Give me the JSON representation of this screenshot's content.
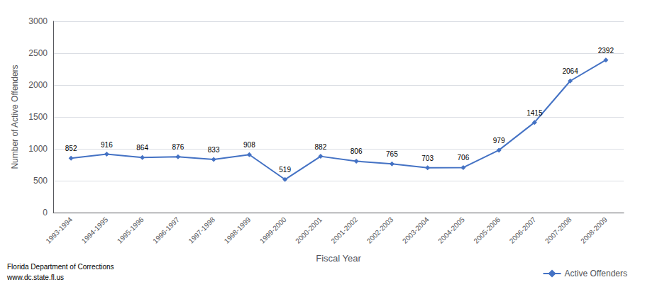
{
  "chart_data": {
    "type": "line",
    "categories": [
      "1993-1994",
      "1994-1995",
      "1995-1996",
      "1996-1997",
      "1997-1998",
      "1998-1999",
      "1999-2000",
      "2000-2001",
      "2001-2002",
      "2002-2003",
      "2003-2004",
      "2004-2005",
      "2005-2006",
      "2006-2007",
      "2007-2008",
      "2008-2009"
    ],
    "series": [
      {
        "name": "Active Offenders",
        "color": "#4472C4",
        "marker": "diamond",
        "values": [
          852,
          916,
          864,
          876,
          833,
          908,
          519,
          882,
          806,
          765,
          703,
          706,
          979,
          1415,
          2064,
          2392
        ]
      }
    ],
    "xlabel": "Fiscal Year",
    "ylabel": "Number of Active Offenders",
    "ylim": [
      0,
      3000
    ],
    "yticks": [
      0,
      500,
      1000,
      1500,
      2000,
      2500,
      3000
    ],
    "grid": true,
    "legend": "lower right",
    "data_labels": true,
    "annotations": [
      "Florida Department of Corrections",
      "www.dc.state.fl.us"
    ]
  }
}
